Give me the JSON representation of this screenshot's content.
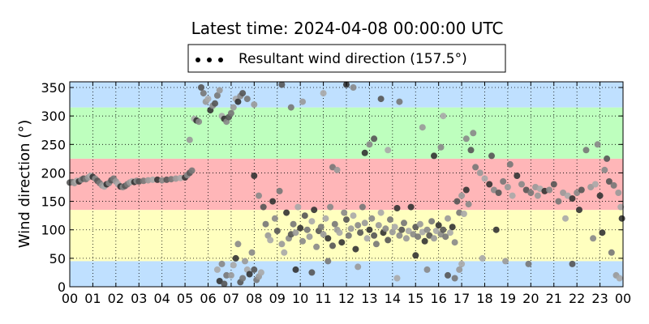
{
  "chart_data": {
    "type": "scatter",
    "title": "Latest time: 2024-04-08 00:00:00 UTC",
    "xlabel": "",
    "ylabel": "Wind direction (°)",
    "xlim": [
      0,
      24
    ],
    "ylim": [
      0,
      360
    ],
    "x_ticks": [
      "00",
      "01",
      "02",
      "03",
      "04",
      "05",
      "06",
      "07",
      "08",
      "09",
      "10",
      "11",
      "12",
      "13",
      "14",
      "15",
      "16",
      "17",
      "18",
      "19",
      "20",
      "21",
      "22",
      "23",
      "00"
    ],
    "y_ticks": [
      0,
      50,
      100,
      150,
      200,
      250,
      300,
      350
    ],
    "grid": true,
    "legend": {
      "placement": "top-center",
      "entries": [
        {
          "label": "Resultant wind direction (157.5°)",
          "marker": "dots"
        }
      ]
    },
    "bands": [
      {
        "from": 0,
        "to": 45,
        "color": "#bfe0ff"
      },
      {
        "from": 45,
        "to": 135,
        "color": "#ffffbf"
      },
      {
        "from": 135,
        "to": 225,
        "color": "#ffb6b8"
      },
      {
        "from": 225,
        "to": 315,
        "color": "#beffbe"
      },
      {
        "from": 315,
        "to": 360,
        "color": "#bfe0ff"
      }
    ],
    "series": [
      {
        "name": "Resultant wind direction (157.5°)",
        "points": [
          [
            0.0,
            183
          ],
          [
            0.1,
            184
          ],
          [
            0.2,
            182
          ],
          [
            0.3,
            186
          ],
          [
            0.4,
            185
          ],
          [
            0.5,
            188
          ],
          [
            0.6,
            190
          ],
          [
            0.7,
            189
          ],
          [
            0.8,
            192
          ],
          [
            0.9,
            195
          ],
          [
            1.0,
            193
          ],
          [
            1.1,
            190
          ],
          [
            1.2,
            186
          ],
          [
            1.3,
            182
          ],
          [
            1.4,
            178
          ],
          [
            1.5,
            176
          ],
          [
            1.6,
            180
          ],
          [
            1.7,
            182
          ],
          [
            1.8,
            187
          ],
          [
            1.9,
            190
          ],
          [
            2.0,
            185
          ],
          [
            2.1,
            180
          ],
          [
            2.2,
            176
          ],
          [
            2.3,
            175
          ],
          [
            2.4,
            177
          ],
          [
            2.5,
            180
          ],
          [
            2.6,
            183
          ],
          [
            2.7,
            185
          ],
          [
            2.8,
            184
          ],
          [
            2.9,
            186
          ],
          [
            3.0,
            185
          ],
          [
            3.2,
            186
          ],
          [
            3.4,
            187
          ],
          [
            3.6,
            188
          ],
          [
            3.8,
            188
          ],
          [
            4.0,
            187
          ],
          [
            4.2,
            188
          ],
          [
            4.4,
            189
          ],
          [
            4.6,
            190
          ],
          [
            4.8,
            191
          ],
          [
            5.0,
            192
          ],
          [
            5.1,
            196
          ],
          [
            5.2,
            200
          ],
          [
            5.3,
            204
          ],
          [
            5.2,
            258
          ],
          [
            5.4,
            295
          ],
          [
            5.5,
            292
          ],
          [
            5.6,
            290
          ],
          [
            5.7,
            350
          ],
          [
            5.8,
            340
          ],
          [
            5.9,
            325
          ],
          [
            6.0,
            330
          ],
          [
            6.1,
            310
          ],
          [
            6.2,
            318
          ],
          [
            6.3,
            322
          ],
          [
            6.4,
            336
          ],
          [
            6.5,
            345
          ],
          [
            6.6,
            300
          ],
          [
            6.7,
            295
          ],
          [
            6.8,
            290
          ],
          [
            6.9,
            298
          ],
          [
            7.0,
            305
          ],
          [
            7.1,
            315
          ],
          [
            7.2,
            330
          ],
          [
            7.3,
            325
          ],
          [
            7.4,
            335
          ],
          [
            7.5,
            340
          ],
          [
            7.7,
            330
          ],
          [
            8.0,
            320
          ],
          [
            6.4,
            30
          ],
          [
            6.5,
            10
          ],
          [
            6.6,
            40
          ],
          [
            6.7,
            5
          ],
          [
            6.8,
            20
          ],
          [
            7.0,
            20
          ],
          [
            7.1,
            38
          ],
          [
            7.2,
            50
          ],
          [
            7.3,
            75
          ],
          [
            7.4,
            8
          ],
          [
            7.5,
            15
          ],
          [
            7.6,
            45
          ],
          [
            7.7,
            30
          ],
          [
            7.8,
            22
          ],
          [
            7.9,
            60
          ],
          [
            8.0,
            30
          ],
          [
            8.1,
            12
          ],
          [
            8.2,
            18
          ],
          [
            8.3,
            25
          ],
          [
            8.0,
            195
          ],
          [
            8.2,
            160
          ],
          [
            8.4,
            140
          ],
          [
            8.5,
            110
          ],
          [
            8.6,
            90
          ],
          [
            8.7,
            82
          ],
          [
            8.8,
            150
          ],
          [
            8.9,
            120
          ],
          [
            9.0,
            98
          ],
          [
            9.1,
            168
          ],
          [
            9.2,
            75
          ],
          [
            9.3,
            60
          ],
          [
            9.4,
            130
          ],
          [
            9.5,
            85
          ],
          [
            9.6,
            92
          ],
          [
            9.7,
            110
          ],
          [
            9.8,
            95
          ],
          [
            9.9,
            140
          ],
          [
            10.0,
            103
          ],
          [
            10.1,
            80
          ],
          [
            10.2,
            125
          ],
          [
            10.3,
            100
          ],
          [
            10.4,
            88
          ],
          [
            10.5,
            115
          ],
          [
            10.6,
            135
          ],
          [
            10.7,
            70
          ],
          [
            10.8,
            98
          ],
          [
            10.9,
            105
          ],
          [
            11.0,
            92
          ],
          [
            11.1,
            120
          ],
          [
            11.2,
            85
          ],
          [
            11.3,
            140
          ],
          [
            11.4,
            72
          ],
          [
            11.5,
            110
          ],
          [
            11.6,
            100
          ],
          [
            11.7,
            95
          ],
          [
            11.8,
            78
          ],
          [
            11.9,
            130
          ],
          [
            12.0,
            118
          ],
          [
            12.1,
            90
          ],
          [
            12.2,
            102
          ],
          [
            12.3,
            125
          ],
          [
            12.4,
            66
          ],
          [
            12.5,
            108
          ],
          [
            12.6,
            95
          ],
          [
            12.7,
            140
          ],
          [
            12.8,
            112
          ],
          [
            12.9,
            85
          ],
          [
            13.0,
            100
          ],
          [
            13.1,
            120
          ],
          [
            13.2,
            90
          ],
          [
            13.3,
            75
          ],
          [
            13.4,
            108
          ],
          [
            13.5,
            130
          ],
          [
            13.6,
            95
          ],
          [
            13.7,
            102
          ],
          [
            13.8,
            82
          ],
          [
            13.9,
            118
          ],
          [
            14.0,
            96
          ],
          [
            14.1,
            105
          ],
          [
            14.2,
            138
          ],
          [
            14.3,
            90
          ],
          [
            14.4,
            100
          ],
          [
            14.5,
            112
          ],
          [
            14.6,
            85
          ],
          [
            14.7,
            98
          ],
          [
            14.8,
            140
          ],
          [
            14.9,
            92
          ],
          [
            15.0,
            105
          ],
          [
            15.1,
            88
          ],
          [
            15.2,
            110
          ],
          [
            15.3,
            96
          ],
          [
            15.4,
            80
          ],
          [
            15.5,
            100
          ],
          [
            15.6,
            90
          ],
          [
            15.7,
            115
          ],
          [
            15.8,
            85
          ],
          [
            15.9,
            98
          ],
          [
            16.0,
            108
          ],
          [
            16.1,
            92
          ],
          [
            16.2,
            100
          ],
          [
            16.3,
            88
          ],
          [
            16.4,
            120
          ],
          [
            16.5,
            95
          ],
          [
            16.6,
            105
          ],
          [
            16.7,
            78
          ],
          [
            16.8,
            150
          ],
          [
            16.9,
            130
          ],
          [
            17.0,
            160
          ],
          [
            17.1,
            128
          ],
          [
            17.2,
            170
          ],
          [
            17.3,
            145
          ],
          [
            9.2,
            355
          ],
          [
            9.6,
            315
          ],
          [
            10.1,
            325
          ],
          [
            11.0,
            340
          ],
          [
            12.0,
            355
          ],
          [
            12.3,
            350
          ],
          [
            13.5,
            330
          ],
          [
            14.3,
            325
          ],
          [
            15.3,
            280
          ],
          [
            16.2,
            300
          ],
          [
            12.8,
            235
          ],
          [
            13.0,
            250
          ],
          [
            13.2,
            260
          ],
          [
            11.4,
            210
          ],
          [
            11.6,
            205
          ],
          [
            13.8,
            240
          ],
          [
            15.8,
            230
          ],
          [
            16.1,
            245
          ],
          [
            16.4,
            20
          ],
          [
            16.7,
            15
          ],
          [
            16.9,
            30
          ],
          [
            17.0,
            40
          ],
          [
            15.0,
            55
          ],
          [
            15.5,
            30
          ],
          [
            10.5,
            25
          ],
          [
            11.2,
            45
          ],
          [
            12.5,
            35
          ],
          [
            14.2,
            15
          ],
          [
            9.8,
            30
          ],
          [
            17.2,
            260
          ],
          [
            17.4,
            240
          ],
          [
            17.6,
            210
          ],
          [
            17.8,
            200
          ],
          [
            18.0,
            190
          ],
          [
            18.2,
            180
          ],
          [
            18.4,
            170
          ],
          [
            18.6,
            165
          ],
          [
            18.8,
            185
          ],
          [
            19.0,
            175
          ],
          [
            19.2,
            160
          ],
          [
            19.4,
            195
          ],
          [
            19.6,
            180
          ],
          [
            19.8,
            170
          ],
          [
            20.0,
            165
          ],
          [
            20.2,
            175
          ],
          [
            20.4,
            172
          ],
          [
            20.6,
            168
          ],
          [
            20.8,
            170
          ],
          [
            21.0,
            180
          ],
          [
            21.2,
            150
          ],
          [
            21.4,
            165
          ],
          [
            21.6,
            160
          ],
          [
            21.8,
            155
          ],
          [
            22.0,
            165
          ],
          [
            22.2,
            170
          ],
          [
            22.4,
            240
          ],
          [
            22.6,
            175
          ],
          [
            22.8,
            180
          ],
          [
            23.0,
            160
          ],
          [
            23.2,
            205
          ],
          [
            23.4,
            185
          ],
          [
            23.6,
            178
          ],
          [
            23.8,
            165
          ],
          [
            23.9,
            140
          ],
          [
            23.95,
            120
          ],
          [
            17.5,
            270
          ],
          [
            18.3,
            230
          ],
          [
            19.1,
            215
          ],
          [
            20.3,
            160
          ],
          [
            21.5,
            120
          ],
          [
            22.1,
            135
          ],
          [
            22.9,
            250
          ],
          [
            23.3,
            225
          ],
          [
            23.5,
            60
          ],
          [
            23.7,
            20
          ],
          [
            23.85,
            15
          ],
          [
            23.1,
            95
          ],
          [
            22.7,
            85
          ],
          [
            21.8,
            40
          ],
          [
            19.9,
            40
          ],
          [
            18.9,
            45
          ],
          [
            17.9,
            50
          ],
          [
            18.5,
            100
          ]
        ]
      }
    ]
  }
}
